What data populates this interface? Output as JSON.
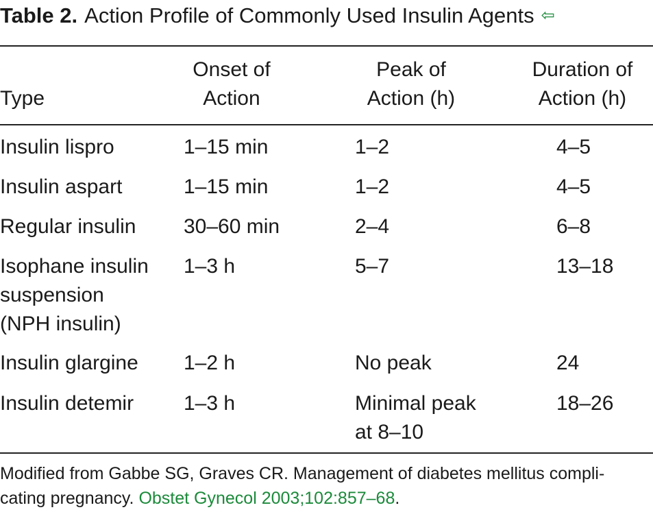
{
  "table": {
    "title_label": "Table 2.",
    "title_text": "Action Profile of Commonly Used Insulin Agents",
    "back_icon": "back-arrow-icon",
    "accent_color": "#1b8a3a",
    "headers": {
      "type": "Type",
      "onset": "Onset of\nAction",
      "peak": "Peak of\nAction (h)",
      "duration": "Duration of\nAction (h)"
    },
    "rows": [
      {
        "type": "Insulin lispro",
        "onset": "1–15 min",
        "peak": "1–2",
        "duration": "4–5"
      },
      {
        "type": "Insulin aspart",
        "onset": "1–15 min",
        "peak": "1–2",
        "duration": "4–5"
      },
      {
        "type": "Regular insulin",
        "onset": "30–60 min",
        "peak": "2–4",
        "duration": "6–8"
      },
      {
        "type": "Isophane insulin\nsuspension\n(NPH insulin)",
        "onset": "1–3 h",
        "peak": "5–7",
        "duration": "13–18"
      },
      {
        "type": "Insulin glargine",
        "onset": "1–2 h",
        "peak": "No peak",
        "duration": "24"
      },
      {
        "type": "Insulin detemir",
        "onset": "1–3 h",
        "peak": "Minimal peak\nat 8–10",
        "duration": "18–26"
      }
    ],
    "footnote": {
      "text_before": "Modified from Gabbe SG, Graves CR. Management of diabetes mellitus compli-\ncating pregnancy. ",
      "link_text": "Obstet Gynecol 2003;102:857–68",
      "text_after": "."
    }
  }
}
